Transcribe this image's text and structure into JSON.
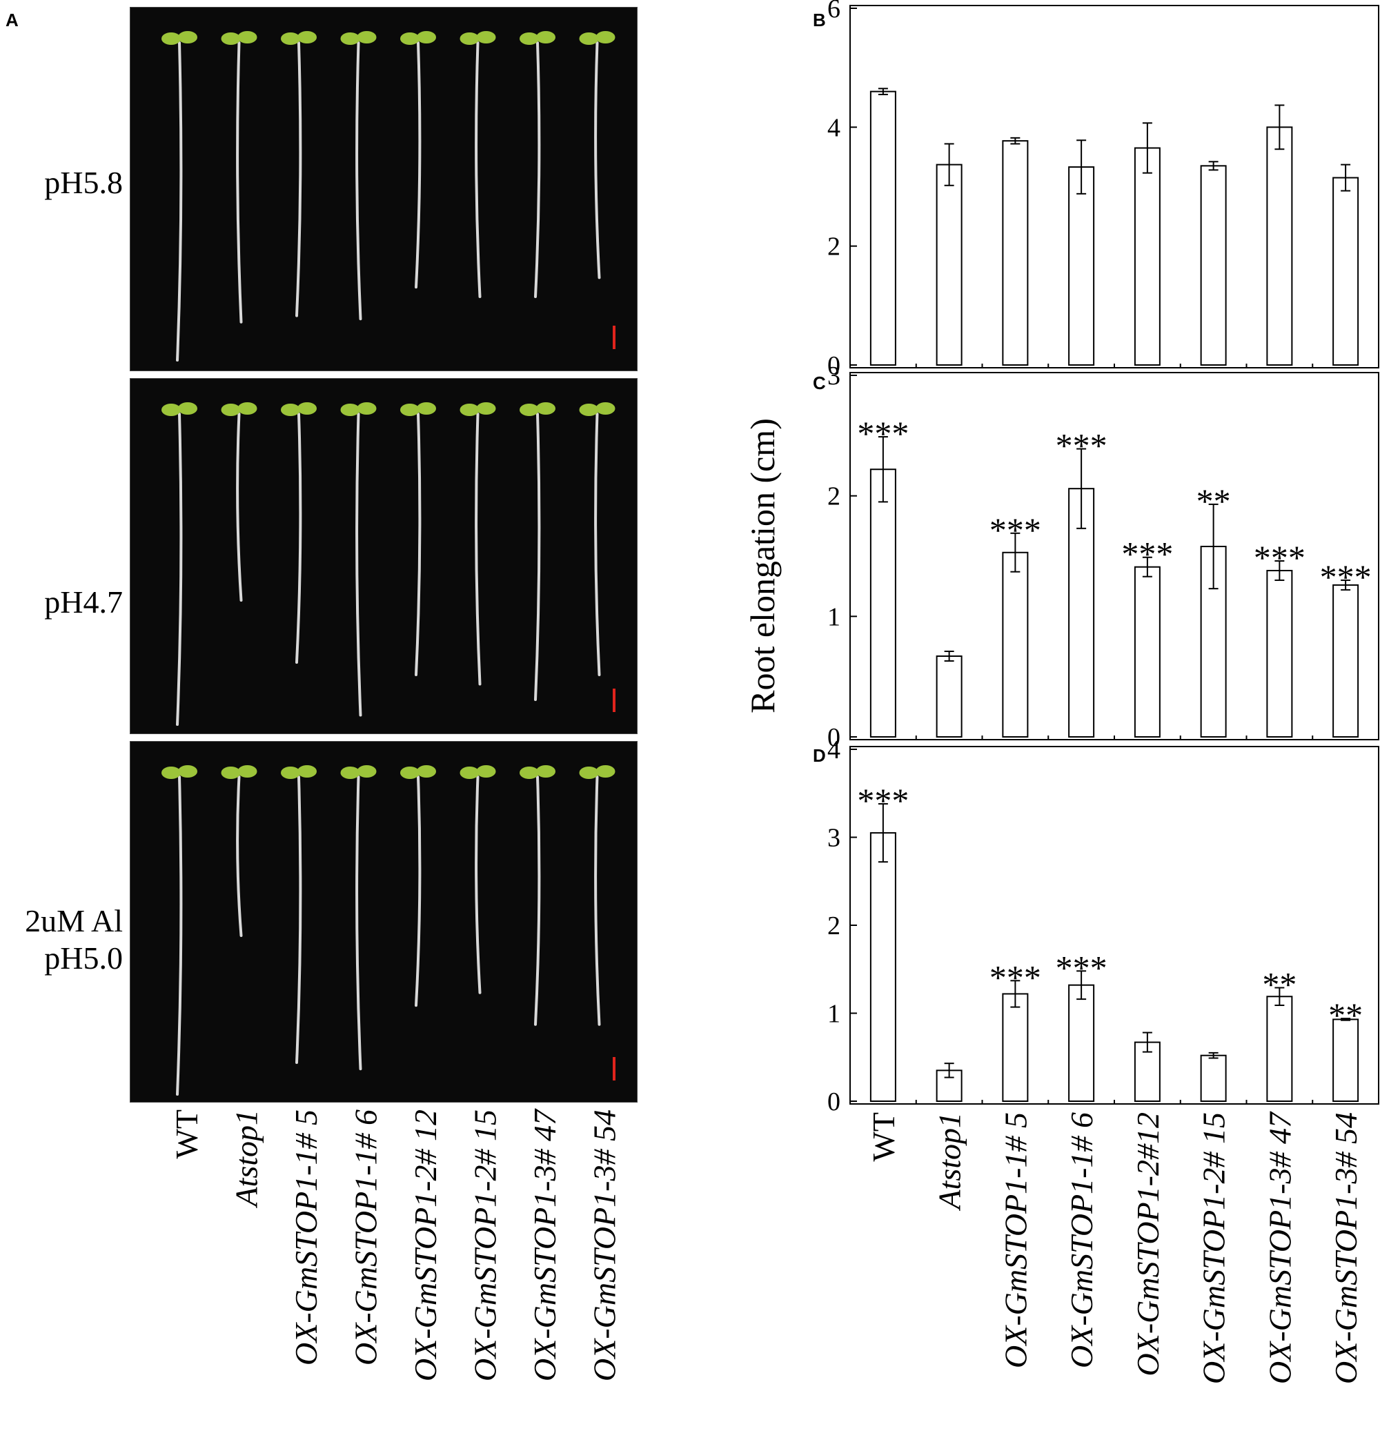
{
  "panels": {
    "a": "A",
    "b": "B",
    "c": "C",
    "d": "D"
  },
  "conditions": [
    {
      "lines": [
        "pH5.8"
      ]
    },
    {
      "lines": [
        "pH4.7"
      ]
    },
    {
      "lines": [
        "2uM Al",
        "pH5.0"
      ]
    }
  ],
  "ylabel": "Root elongation (cm)",
  "colors": {
    "photo_background": "#0a0a0a",
    "root": "#d9d9d9",
    "leaf": "#9cc43a",
    "scale_bar": "#e0241c",
    "bar_fill": "#ffffff",
    "axis": "#000000"
  },
  "chart_data": [
    {
      "panel": "B",
      "type": "bar",
      "categories": [
        "WT",
        "Atstop1",
        "OX-GmSTOP1-1# 5",
        "OX-GmSTOP1-1# 6",
        "OX-GmSTOP1-2# 12",
        "OX-GmSTOP1-2# 15",
        "OX-GmSTOP1-3# 47",
        "OX-GmSTOP1-3# 54"
      ],
      "values": [
        4.6,
        3.37,
        3.77,
        3.33,
        3.65,
        3.35,
        4.0,
        3.15
      ],
      "errors": [
        0.05,
        0.35,
        0.05,
        0.45,
        0.42,
        0.07,
        0.37,
        0.22
      ],
      "significance": [
        "",
        "",
        "",
        "",
        "",
        "",
        "",
        ""
      ],
      "ylim": [
        0,
        6
      ],
      "yticks": [
        0,
        2,
        4,
        6
      ]
    },
    {
      "panel": "C",
      "type": "bar",
      "categories": [
        "WT",
        "Atstop1",
        "OX-GmSTOP1-1# 5",
        "OX-GmSTOP1-1# 6",
        "OX-GmSTOP1-2# 12",
        "OX-GmSTOP1-2# 15",
        "OX-GmSTOP1-3# 47",
        "OX-GmSTOP1-3# 54"
      ],
      "values": [
        2.22,
        0.67,
        1.53,
        2.06,
        1.41,
        1.58,
        1.38,
        1.26
      ],
      "errors": [
        0.27,
        0.04,
        0.16,
        0.33,
        0.08,
        0.35,
        0.08,
        0.04
      ],
      "significance": [
        "***",
        "",
        "***",
        "***",
        "***",
        "**",
        "***",
        "***"
      ],
      "ylim": [
        0,
        3
      ],
      "yticks": [
        0,
        1,
        2,
        3
      ]
    },
    {
      "panel": "D",
      "type": "bar",
      "categories": [
        "WT",
        "Atstop1",
        "OX-GmSTOP1-1# 5",
        "OX-GmSTOP1-1# 6",
        "OX-GmSTOP1-2#12",
        "OX-GmSTOP1-2# 15",
        "OX-GmSTOP1-3# 47",
        "OX-GmSTOP1-3# 54"
      ],
      "values": [
        3.05,
        0.35,
        1.22,
        1.32,
        0.67,
        0.52,
        1.19,
        0.93
      ],
      "errors": [
        0.33,
        0.08,
        0.15,
        0.16,
        0.11,
        0.03,
        0.1,
        0.01
      ],
      "significance": [
        "***",
        "",
        "***",
        "***",
        "",
        "",
        "**",
        "**"
      ],
      "ylim": [
        0,
        4
      ],
      "yticks": [
        0,
        1,
        2,
        3,
        4
      ]
    }
  ],
  "photo_labels": [
    "WT",
    "Atstop1",
    "OX-GmSTOP1-1# 5",
    "OX-GmSTOP1-1# 6",
    "OX-GmSTOP1-2# 12",
    "OX-GmSTOP1-2# 15",
    "OX-GmSTOP1-3# 47",
    "OX-GmSTOP1-3# 54"
  ],
  "photo_roots": [
    {
      "condition": "pH5.8",
      "relative_root_length": [
        1.0,
        0.88,
        0.86,
        0.87,
        0.77,
        0.8,
        0.8,
        0.74
      ]
    },
    {
      "condition": "pH4.7",
      "relative_root_length": [
        1.0,
        0.6,
        0.8,
        0.97,
        0.84,
        0.87,
        0.92,
        0.84
      ]
    },
    {
      "condition": "2uM Al pH5.0",
      "relative_root_length": [
        1.0,
        0.5,
        0.9,
        0.92,
        0.72,
        0.68,
        0.78,
        0.78
      ]
    }
  ]
}
